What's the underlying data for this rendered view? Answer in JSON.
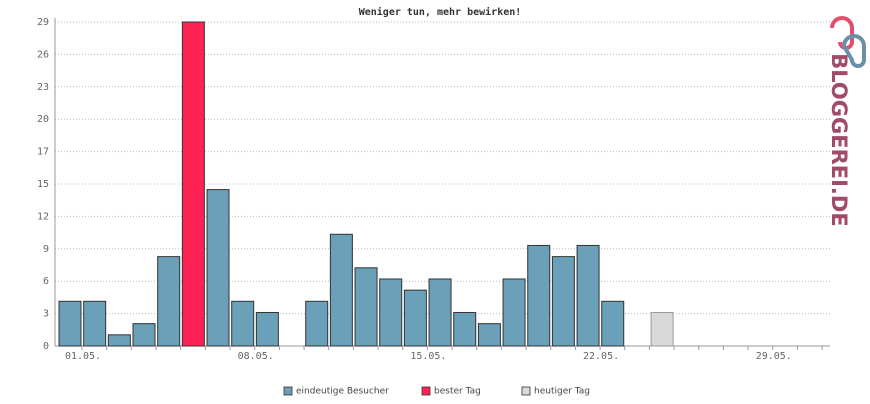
{
  "chart_data": {
    "type": "bar",
    "title": "Weniger tun, mehr bewirken!",
    "categories": [
      "01.05.",
      null,
      null,
      null,
      null,
      null,
      null,
      "08.05.",
      null,
      null,
      null,
      null,
      null,
      null,
      "15.05.",
      null,
      null,
      null,
      null,
      null,
      null,
      "22.05.",
      null,
      null,
      null,
      null,
      null,
      null,
      "29.05.",
      null,
      null
    ],
    "series": [
      {
        "name": "eindeutige Besucher",
        "color": "#6aa0b8",
        "values": [
          4,
          4,
          1,
          2,
          8,
          null,
          14,
          4,
          3,
          0,
          4,
          10,
          7,
          6,
          5,
          6,
          3,
          2,
          6,
          9,
          8,
          9,
          4,
          0,
          null,
          null,
          null,
          null,
          null,
          null,
          null
        ]
      },
      {
        "name": "bester Tag",
        "color": "#ff2255",
        "values": [
          null,
          null,
          null,
          null,
          null,
          29,
          null,
          null,
          null,
          null,
          null,
          null,
          null,
          null,
          null,
          null,
          null,
          null,
          null,
          null,
          null,
          null,
          null,
          null,
          null,
          null,
          null,
          null,
          null,
          null,
          null
        ]
      },
      {
        "name": "heutiger Tag",
        "color": "#d9d9d9",
        "values": [
          null,
          null,
          null,
          null,
          null,
          null,
          null,
          null,
          null,
          null,
          null,
          null,
          null,
          null,
          null,
          null,
          null,
          null,
          null,
          null,
          null,
          null,
          null,
          null,
          3,
          null,
          null,
          null,
          null,
          null,
          null
        ]
      }
    ],
    "ylim": [
      0,
      29
    ],
    "yticks": [
      0,
      {
        "value": 2.9,
        "label": "3"
      },
      {
        "value": 5.8,
        "label": "6"
      },
      {
        "value": 8.7,
        "label": "9"
      },
      {
        "value": 11.6,
        "label": "12"
      },
      {
        "value": 14.5,
        "label": "15"
      },
      {
        "value": 17.4,
        "label": "17"
      },
      {
        "value": 20.3,
        "label": "20"
      },
      {
        "value": 23.2,
        "label": "23"
      },
      {
        "value": 26.1,
        "label": "26"
      },
      29
    ],
    "grid": true,
    "watermark": "BLOGGEREI.DE"
  }
}
